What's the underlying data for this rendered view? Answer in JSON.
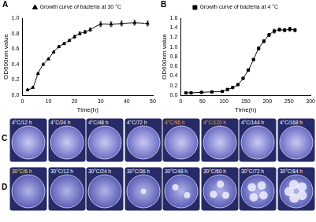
{
  "chart_data": [
    {
      "panel_label": "A",
      "type": "line",
      "x_label": "Time(h)",
      "y_label": "OD600nm value",
      "x": [
        2,
        4,
        6,
        8,
        10,
        12,
        14,
        16,
        18,
        20,
        22,
        24,
        26,
        30,
        34,
        38,
        43,
        48
      ],
      "series": [
        {
          "name": "Growth curve of bacteria at 30 °C",
          "color": "#000000",
          "marker": "triangle",
          "line_style": "solid",
          "values": [
            0.07,
            0.1,
            0.28,
            0.4,
            0.47,
            0.56,
            0.63,
            0.67,
            0.71,
            0.76,
            0.8,
            0.82,
            0.85,
            0.92,
            0.92,
            0.93,
            0.94,
            0.93
          ],
          "errors": [
            0.005,
            0.005,
            0.01,
            0.01,
            0.01,
            0.01,
            0.015,
            0.015,
            0.015,
            0.02,
            0.02,
            0.02,
            0.02,
            0.03,
            0.03,
            0.03,
            0.03,
            0.03
          ]
        }
      ],
      "xlim": [
        0,
        50
      ],
      "xticks": [
        0,
        10,
        20,
        30,
        40,
        50
      ],
      "ylim": [
        0,
        1
      ],
      "yticks": [
        {
          "value": 0,
          "label": "0.0"
        },
        0.2,
        0.4,
        0.6,
        0.8,
        {
          "value": 1,
          "label": "1.0"
        }
      ],
      "grid": false,
      "legend": "top"
    },
    {
      "panel_label": "B",
      "type": "line",
      "x_label": "Time(h)",
      "y_label": "OD600nm value",
      "x": [
        12,
        24,
        48,
        72,
        96,
        108,
        120,
        132,
        144,
        156,
        168,
        180,
        192,
        204,
        216,
        228,
        240,
        252,
        264
      ],
      "series": [
        {
          "name": "Growth curve of bacteria at 4 °C",
          "color": "#000000",
          "marker": "square",
          "line_style": "solid",
          "values": [
            0.05,
            0.05,
            0.06,
            0.07,
            0.08,
            0.12,
            0.16,
            0.22,
            0.35,
            0.52,
            0.74,
            0.97,
            1.12,
            1.25,
            1.33,
            1.36,
            1.35,
            1.37,
            1.35
          ],
          "errors": [
            0.005,
            0.005,
            0.005,
            0.005,
            0.005,
            0.01,
            0.01,
            0.01,
            0.02,
            0.02,
            0.02,
            0.03,
            0.03,
            0.03,
            0.04,
            0.03,
            0.03,
            0.04,
            0.03
          ]
        }
      ],
      "xlim": [
        0,
        300
      ],
      "xticks": [
        0,
        50,
        100,
        150,
        200,
        250,
        300
      ],
      "ylim": [
        0,
        1.6
      ],
      "yticks": [
        {
          "value": 0,
          "label": "0.0"
        },
        0.2,
        0.4,
        0.6,
        0.8,
        {
          "value": 1,
          "label": "1.0"
        },
        1.2,
        1.4,
        1.6
      ],
      "grid": false,
      "legend": "top"
    }
  ],
  "plate_rows": [
    {
      "panel_label": "C",
      "labels": [
        "4°C/12 h",
        "4°C/24 h",
        "4°C/48 h",
        "4°C/72 h",
        "4°C/96 h",
        "4°C/120 h",
        "4°C/144 h",
        "4°C/168 h"
      ]
    },
    {
      "panel_label": "D",
      "labels": [
        "30°C/6 h",
        "30°C/12 h",
        "30°C/24 h",
        "30°C/36 h",
        "30°C/48 h",
        "30°C/60 h",
        "30°C/72 h",
        "30°C/84 h"
      ]
    }
  ]
}
